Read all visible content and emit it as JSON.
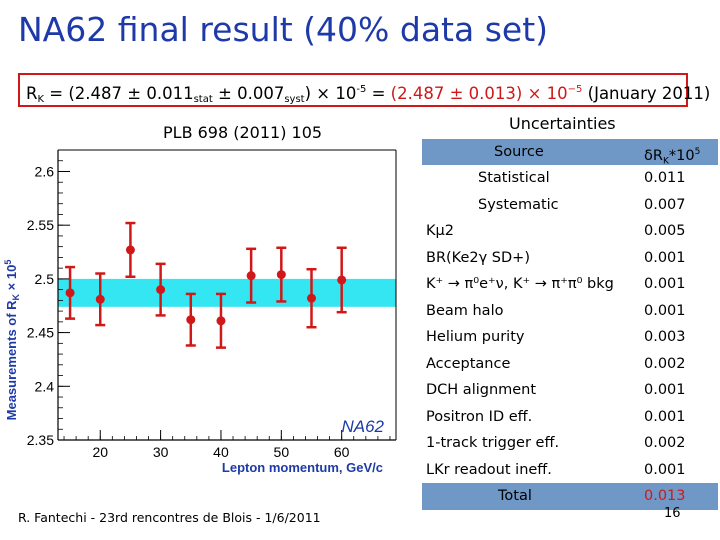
{
  "slide": {
    "title": "NA62 final result (40% data set)",
    "footer": "R. Fantechi - 23rd rencontres de Blois - 1/6/2011",
    "page_number": "16"
  },
  "result_box": {
    "rk_label": "R",
    "rk_sub": "K",
    "eq1": " = (2.487 ± 0.011",
    "stat": "stat",
    "pm2": " ± 0.007",
    "syst": "syst",
    "x1": ") × 10",
    "exp1": "-5",
    "eq2": " = ",
    "combined": "(2.487 ± 0.013) × 10",
    "exp2": "−5",
    "date": " (January 2011)"
  },
  "plot": {
    "reference": "PLB 698 (2011) 105",
    "watermark": "NA62"
  },
  "uncertainties": {
    "title": "Uncertainties",
    "header_source": "Source",
    "header_value": "δR",
    "header_value_sub": "K",
    "header_value_tail": "*10",
    "header_value_sup": "5",
    "rows": [
      {
        "source": "Statistical",
        "value": "0.011"
      },
      {
        "source": "Systematic",
        "value": "0.007"
      },
      {
        "source": "Kμ2",
        "value": "0.005"
      },
      {
        "source": "BR(Ke2γ SD+)",
        "value": "0.001"
      },
      {
        "source": "K⁺ → π⁰e⁺ν, K⁺ → π⁺π⁰ bkg",
        "value": "0.001"
      },
      {
        "source": "Beam halo",
        "value": "0.001"
      },
      {
        "source": "Helium purity",
        "value": "0.003"
      },
      {
        "source": "Acceptance",
        "value": "0.002"
      },
      {
        "source": "DCH alignment",
        "value": "0.001"
      },
      {
        "source": "Positron ID eff.",
        "value": "0.001"
      },
      {
        "source": "1-track trigger eff.",
        "value": "0.002"
      },
      {
        "source": "LKr readout ineff.",
        "value": "0.001"
      },
      {
        "source": "Total",
        "value": "0.013"
      }
    ]
  },
  "colors": {
    "title": "#1d3aa8",
    "points": "#d01818",
    "band": "#33e6f2",
    "table_header": "#6f98c6",
    "table_footer": "#6f98c6"
  },
  "chart_data": {
    "type": "scatter",
    "title": "",
    "xlabel": "Lepton momentum, GeV/c",
    "ylabel": "Measurements of R",
    "ylabel_sub": "K",
    "ylabel_tail": " × 10",
    "ylabel_sup": "5",
    "xlim": [
      13,
      69
    ],
    "ylim": [
      2.35,
      2.62
    ],
    "x_ticks": [
      20,
      30,
      40,
      50,
      60
    ],
    "y_ticks": [
      2.35,
      2.4,
      2.45,
      2.5,
      2.55,
      2.6
    ],
    "y_tick_labels": [
      "2.35",
      "2.4",
      "2.45",
      "2.5",
      "2.55",
      "2.6"
    ],
    "band": {
      "center": 2.487,
      "halfwidth": 0.013
    },
    "points": [
      {
        "x": 15,
        "y": 2.487,
        "err": 0.024
      },
      {
        "x": 20,
        "y": 2.481,
        "err": 0.024
      },
      {
        "x": 25,
        "y": 2.527,
        "err": 0.025
      },
      {
        "x": 30,
        "y": 2.49,
        "err": 0.024
      },
      {
        "x": 35,
        "y": 2.462,
        "err": 0.024
      },
      {
        "x": 40,
        "y": 2.461,
        "err": 0.025
      },
      {
        "x": 45,
        "y": 2.503,
        "err": 0.025
      },
      {
        "x": 50,
        "y": 2.504,
        "err": 0.025
      },
      {
        "x": 55,
        "y": 2.482,
        "err": 0.027
      },
      {
        "x": 60,
        "y": 2.499,
        "err": 0.03
      }
    ]
  }
}
